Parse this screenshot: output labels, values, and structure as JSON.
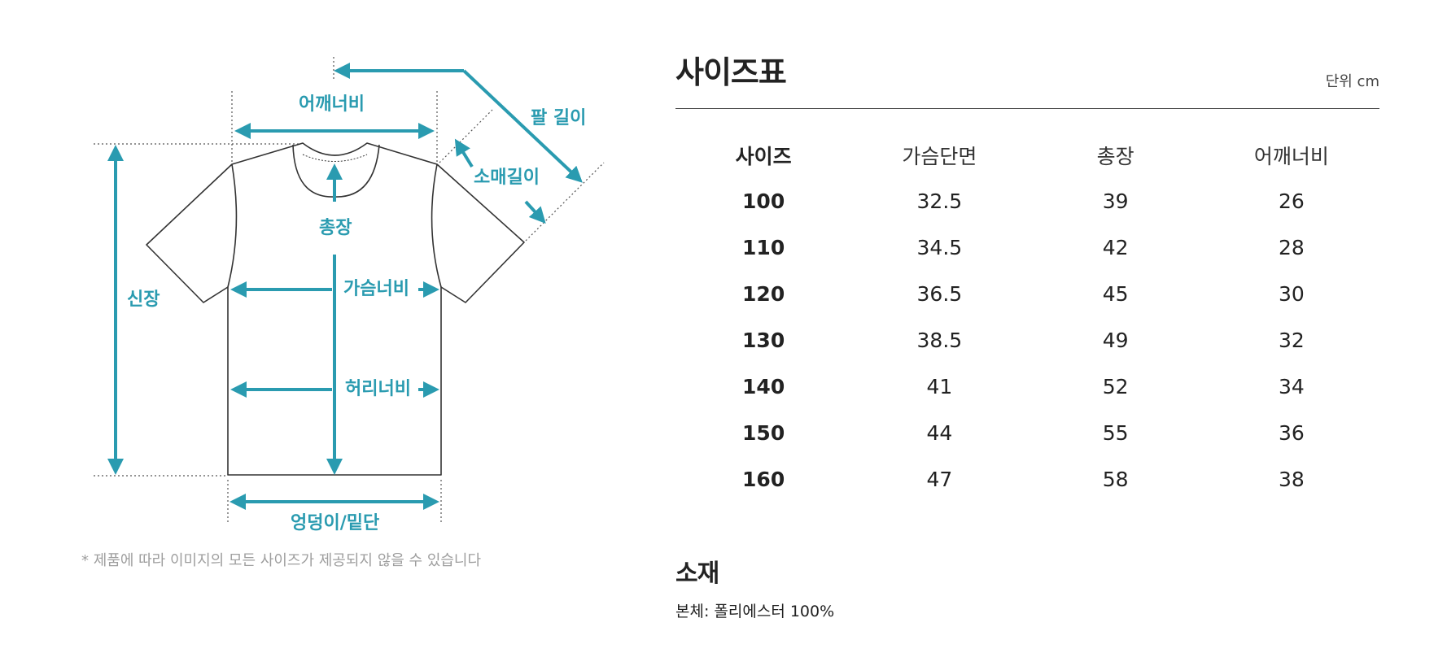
{
  "diagram": {
    "labels": {
      "shoulder": "어깨너비",
      "arm_length": "팔 길이",
      "sleeve": "소매길이",
      "total_length": "총장",
      "height": "신장",
      "chest": "가슴너비",
      "waist": "허리너비",
      "hip": "엉덩이/밑단"
    },
    "accent_color": "#2a9bb0",
    "outline_color": "#333333",
    "note": "* 제품에 따라 이미지의 모든 사이즈가 제공되지 않을 수 있습니다"
  },
  "size_table": {
    "title": "사이즈표",
    "unit": "단위 cm",
    "headers": [
      "사이즈",
      "가슴단면",
      "총장",
      "어깨너비"
    ],
    "rows": [
      [
        "100",
        "32.5",
        "39",
        "26"
      ],
      [
        "110",
        "34.5",
        "42",
        "28"
      ],
      [
        "120",
        "36.5",
        "45",
        "30"
      ],
      [
        "130",
        "38.5",
        "49",
        "32"
      ],
      [
        "140",
        "41",
        "52",
        "34"
      ],
      [
        "150",
        "44",
        "55",
        "36"
      ],
      [
        "160",
        "47",
        "58",
        "38"
      ]
    ]
  },
  "material": {
    "title": "소재",
    "body": "본체: 폴리에스터 100%"
  }
}
